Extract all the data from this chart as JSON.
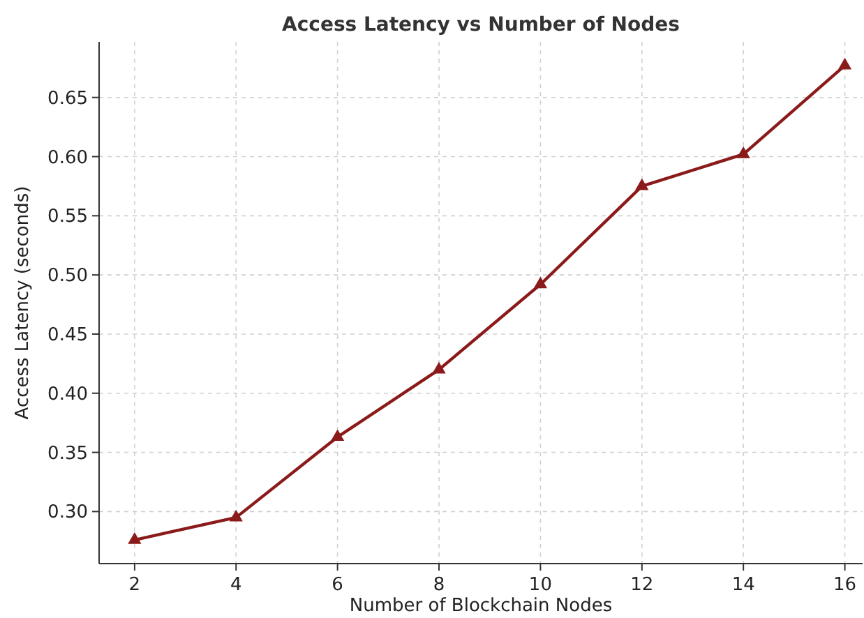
{
  "chart_data": {
    "type": "line",
    "title": "Access Latency vs Number of Nodes",
    "xlabel": "Number of Blockchain Nodes",
    "ylabel": "Access Latency (seconds)",
    "x": [
      2,
      4,
      6,
      8,
      10,
      12,
      14,
      16
    ],
    "series": [
      {
        "color": "#8b1a1a",
        "values": [
          0.276,
          0.295,
          0.363,
          0.42,
          0.492,
          0.575,
          0.602,
          0.677
        ]
      }
    ],
    "xlim": [
      1.3,
      16.35
    ],
    "xticks": [
      2,
      4,
      6,
      8,
      10,
      12,
      14,
      16
    ],
    "ylim": [
      0.256,
      0.697
    ],
    "yticks": [
      {
        "value": 0.3,
        "label": "0.30"
      },
      {
        "value": 0.35,
        "label": "0.35"
      },
      {
        "value": 0.4,
        "label": "0.40"
      },
      {
        "value": 0.45,
        "label": "0.45"
      },
      {
        "value": 0.5,
        "label": "0.50"
      },
      {
        "value": 0.55,
        "label": "0.55"
      },
      {
        "value": 0.6,
        "label": "0.60"
      },
      {
        "value": 0.65,
        "label": "0.65"
      }
    ],
    "grid": true,
    "marker": "triangle",
    "line_style": "solid"
  }
}
